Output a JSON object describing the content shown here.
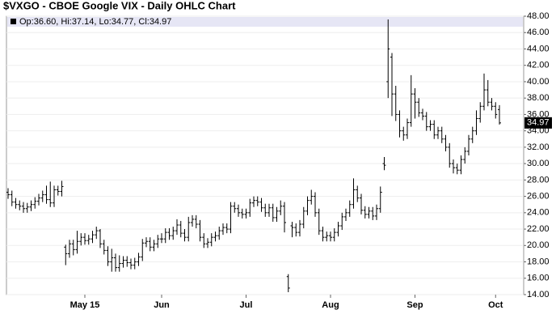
{
  "chart_data": {
    "type": "ohlc",
    "title": "$VXGO - CBOE Google VIX - Daily OHLC Chart",
    "legend_text": "Op:36.60, Hi:37.14, Lo:34.77, Cl:34.97",
    "last_label": "34.97",
    "color": "#000000",
    "legend_band_color": "#e6e6f5",
    "grid": true,
    "ylim": [
      14,
      48
    ],
    "yticks": [
      {
        "value": 14,
        "label": "14.00"
      },
      {
        "value": 16,
        "label": "16.00"
      },
      {
        "value": 18,
        "label": "18.00"
      },
      {
        "value": 20,
        "label": "20.00"
      },
      {
        "value": 22,
        "label": "22.00"
      },
      {
        "value": 24,
        "label": "24.00"
      },
      {
        "value": 26,
        "label": "26.00"
      },
      {
        "value": 28,
        "label": "28.00"
      },
      {
        "value": 30,
        "label": "30.00"
      },
      {
        "value": 32,
        "label": "32.00"
      },
      {
        "value": 34,
        "label": "34.00"
      },
      {
        "value": 36,
        "label": "36.00"
      },
      {
        "value": 38,
        "label": "38.00"
      },
      {
        "value": 40,
        "label": "40.00"
      },
      {
        "value": 42,
        "label": "42.00"
      },
      {
        "value": 44,
        "label": "44.00"
      },
      {
        "value": 46,
        "label": "46.00"
      },
      {
        "value": 48,
        "label": "48.00"
      }
    ],
    "categories": [
      null,
      null,
      null,
      null,
      null,
      null,
      null,
      null,
      null,
      null,
      null,
      null,
      null,
      null,
      null,
      null,
      null,
      null,
      null,
      null,
      "May 15",
      null,
      null,
      null,
      null,
      null,
      null,
      null,
      null,
      null,
      null,
      null,
      null,
      null,
      null,
      null,
      null,
      null,
      null,
      null,
      "Jun",
      null,
      null,
      null,
      null,
      null,
      null,
      null,
      null,
      null,
      null,
      null,
      null,
      null,
      null,
      null,
      null,
      null,
      null,
      null,
      null,
      null,
      "Jul",
      null,
      null,
      null,
      null,
      null,
      null,
      null,
      null,
      null,
      null,
      null,
      null,
      null,
      null,
      null,
      null,
      null,
      null,
      null,
      null,
      null,
      "Aug",
      null,
      null,
      null,
      null,
      null,
      null,
      null,
      null,
      null,
      null,
      null,
      null,
      null,
      null,
      null,
      null,
      null,
      null,
      null,
      null,
      null,
      "Sep",
      null,
      null,
      null,
      null,
      null,
      null,
      null,
      null,
      null,
      null,
      null,
      null,
      null,
      null,
      null,
      null,
      null,
      null,
      null,
      null,
      "Oct",
      null
    ],
    "open": [
      26.5,
      26.2,
      25.3,
      25.0,
      24.8,
      24.5,
      24.7,
      25.0,
      25.4,
      25.8,
      26.2,
      25.6,
      25.2,
      26.8,
      26.6,
      19.8,
      19.0,
      20.2,
      19.5,
      20.5,
      21.0,
      20.6,
      20.8,
      21.3,
      21.8,
      20.2,
      19.4,
      18.0,
      18.5,
      17.3,
      17.8,
      18.2,
      17.9,
      17.6,
      18.0,
      18.6,
      20.3,
      20.5,
      19.8,
      20.2,
      20.8,
      20.8,
      21.6,
      21.2,
      21.8,
      22.5,
      21.5,
      21.0,
      22.8,
      23.2,
      22.6,
      21.0,
      20.2,
      20.4,
      21.0,
      21.2,
      21.8,
      22.2,
      22.0,
      24.8,
      24.5,
      24.0,
      23.8,
      24.0,
      25.2,
      25.5,
      25.3,
      24.6,
      24.0,
      24.6,
      23.4,
      24.2,
      24.8,
      16.2,
      22.4,
      22.2,
      21.6,
      22.6,
      24.2,
      25.5,
      26.0,
      24.0,
      21.8,
      21.0,
      21.2,
      21.0,
      21.6,
      22.4,
      23.5,
      24.0,
      25.0,
      26.8,
      25.8,
      24.3,
      23.8,
      24.2,
      23.6,
      24.5,
      30.0,
      40.0,
      43.0,
      38.5,
      36.0,
      34.0,
      33.5,
      35.0,
      38.5,
      37.5,
      36.2,
      35.8,
      34.5,
      34.8,
      33.5,
      34.0,
      33.0,
      32.0,
      30.0,
      29.5,
      29.2,
      30.5,
      31.5,
      33.0,
      34.0,
      35.5,
      37.0,
      39.0,
      37.5,
      37.0,
      36.6
    ],
    "high": [
      27.0,
      26.7,
      25.8,
      25.5,
      25.3,
      25.2,
      25.5,
      25.9,
      26.3,
      26.7,
      27.3,
      27.8,
      27.3,
      27.3,
      27.9,
      20.1,
      20.7,
      20.7,
      21.8,
      21.5,
      21.5,
      21.3,
      21.8,
      22.3,
      22.0,
      20.7,
      19.9,
      19.6,
      19.0,
      18.8,
      18.7,
      18.7,
      18.4,
      18.5,
      19.1,
      20.8,
      21.0,
      21.0,
      20.7,
      21.3,
      21.5,
      22.1,
      22.1,
      22.3,
      23.2,
      23.0,
      22.0,
      23.5,
      23.7,
      23.7,
      23.1,
      21.5,
      20.9,
      21.5,
      21.7,
      22.3,
      22.7,
      22.7,
      25.3,
      25.3,
      25.0,
      24.5,
      24.5,
      25.7,
      26.0,
      26.0,
      25.8,
      25.1,
      25.1,
      25.1,
      24.7,
      25.5,
      25.3,
      16.5,
      22.9,
      22.7,
      23.1,
      24.7,
      26.0,
      26.8,
      26.5,
      24.5,
      22.3,
      21.7,
      21.7,
      22.1,
      22.9,
      24.0,
      24.5,
      25.5,
      28.2,
      27.3,
      26.3,
      24.8,
      24.7,
      24.7,
      25.0,
      27.2,
      30.8,
      47.6,
      43.5,
      39.5,
      36.5,
      34.5,
      35.5,
      40.8,
      39.2,
      38.0,
      36.7,
      36.3,
      35.3,
      35.3,
      34.5,
      34.5,
      33.5,
      32.5,
      30.5,
      30.0,
      31.0,
      32.0,
      33.5,
      34.5,
      36.5,
      37.5,
      41.0,
      40.2,
      38.0,
      37.5,
      37.14
    ],
    "low": [
      25.7,
      24.8,
      24.5,
      24.3,
      24.0,
      24.0,
      24.2,
      24.5,
      24.9,
      25.3,
      25.1,
      24.7,
      24.7,
      26.1,
      26.0,
      17.6,
      18.5,
      18.8,
      19.0,
      20.0,
      20.1,
      20.1,
      20.3,
      20.8,
      19.7,
      18.9,
      17.5,
      16.8,
      16.8,
      16.8,
      17.3,
      17.4,
      17.1,
      17.1,
      17.5,
      18.1,
      19.8,
      19.3,
      19.3,
      19.7,
      20.3,
      20.3,
      20.7,
      20.7,
      21.3,
      21.0,
      20.5,
      20.5,
      22.3,
      22.1,
      20.5,
      19.7,
      19.7,
      19.9,
      20.5,
      20.7,
      21.3,
      21.5,
      21.5,
      24.0,
      23.5,
      23.3,
      23.3,
      23.5,
      24.7,
      24.8,
      24.1,
      23.5,
      23.5,
      22.9,
      22.9,
      23.7,
      21.6,
      14.3,
      21.0,
      21.1,
      21.1,
      22.1,
      23.7,
      25.0,
      23.5,
      21.3,
      20.5,
      20.5,
      20.5,
      20.5,
      21.1,
      21.9,
      23.0,
      23.5,
      24.5,
      25.3,
      23.8,
      23.3,
      23.3,
      23.1,
      23.1,
      24.0,
      29.2,
      38.0,
      35.8,
      35.2,
      33.2,
      32.8,
      33.0,
      34.5,
      35.5,
      35.7,
      35.3,
      34.0,
      34.0,
      33.0,
      33.0,
      32.5,
      31.5,
      29.5,
      28.8,
      28.7,
      28.7,
      30.0,
      31.0,
      32.5,
      33.5,
      35.0,
      36.5,
      37.0,
      36.5,
      35.5,
      34.77
    ],
    "close": [
      26.2,
      25.3,
      25.0,
      24.8,
      24.5,
      24.7,
      25.0,
      25.4,
      25.8,
      26.2,
      25.6,
      25.2,
      26.8,
      26.6,
      27.2,
      19.0,
      20.2,
      19.5,
      20.5,
      21.0,
      20.6,
      20.8,
      21.3,
      21.8,
      20.2,
      19.4,
      18.0,
      18.5,
      17.3,
      17.8,
      18.2,
      17.9,
      17.6,
      18.0,
      18.6,
      20.3,
      20.5,
      19.8,
      20.2,
      20.8,
      20.8,
      21.6,
      21.2,
      21.8,
      22.5,
      21.5,
      21.0,
      22.8,
      23.2,
      22.6,
      21.0,
      20.2,
      20.4,
      21.0,
      21.2,
      21.8,
      22.2,
      22.0,
      24.8,
      24.5,
      24.0,
      23.8,
      24.0,
      25.2,
      25.5,
      25.3,
      24.6,
      24.0,
      24.6,
      23.4,
      24.2,
      24.8,
      22.8,
      14.8,
      22.2,
      21.6,
      22.6,
      24.2,
      25.5,
      26.0,
      24.0,
      21.8,
      21.0,
      21.2,
      21.0,
      21.6,
      22.4,
      23.5,
      24.0,
      25.0,
      26.8,
      25.8,
      24.3,
      23.8,
      24.2,
      23.6,
      24.5,
      26.5,
      29.8,
      44.0,
      38.5,
      36.0,
      34.0,
      33.5,
      35.0,
      38.5,
      37.5,
      36.2,
      35.8,
      34.5,
      34.8,
      33.5,
      34.0,
      33.0,
      32.0,
      30.0,
      29.5,
      29.2,
      30.5,
      31.5,
      33.0,
      34.0,
      35.5,
      37.0,
      39.0,
      37.5,
      37.0,
      36.0,
      34.97
    ]
  }
}
